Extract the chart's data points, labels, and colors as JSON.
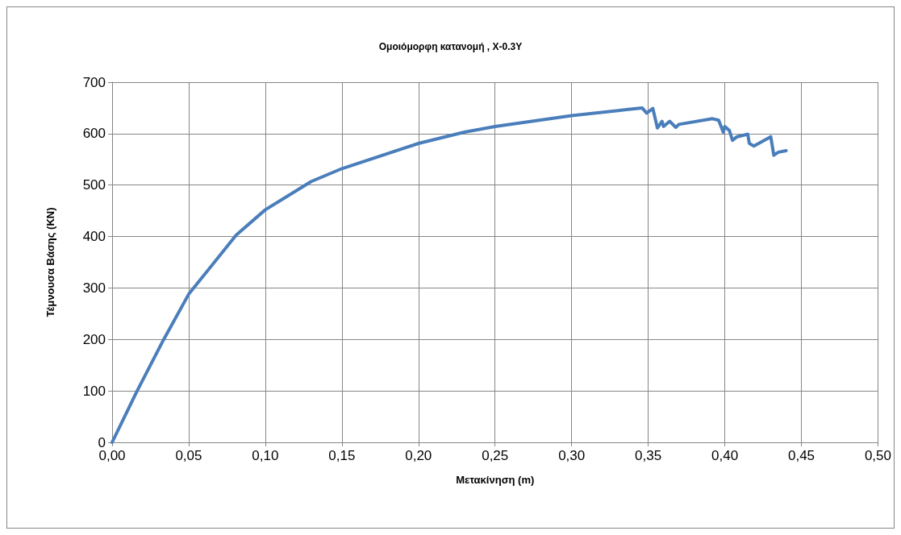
{
  "chart_data": {
    "type": "line",
    "title": "Ομοιόμορφη κατανομή , X-0.3Y",
    "xlabel": "Μετακίνηση (m)",
    "ylabel": "Τέμνουσα Βάσης (KN)",
    "x": [
      0,
      0.016,
      0.0335,
      0.05,
      0.081,
      0.1,
      0.13,
      0.15,
      0.2,
      0.23,
      0.25,
      0.3,
      0.337,
      0.346,
      0.349,
      0.353,
      0.356,
      0.359,
      0.36,
      0.364,
      0.368,
      0.37,
      0.392,
      0.396,
      0.399,
      0.4,
      0.403,
      0.405,
      0.408,
      0.415,
      0.416,
      0.419,
      0.43,
      0.432,
      0.435,
      0.44
    ],
    "series": [
      {
        "color": "#4a7ebb",
        "values": [
          0,
          98,
          199,
          288,
          403,
          452,
          507,
          532,
          581,
          603,
          614,
          635,
          647,
          650,
          640,
          649,
          611,
          624,
          614,
          624,
          612,
          618,
          629,
          626,
          603,
          614,
          606,
          587,
          594,
          599,
          581,
          576,
          594,
          558,
          564,
          567
        ]
      }
    ],
    "xlim": [
      0,
      0.5
    ],
    "xticks": [
      {
        "value": 0,
        "label": "0,00"
      },
      {
        "value": 0.05,
        "label": "0,05"
      },
      {
        "value": 0.1,
        "label": "0,10"
      },
      {
        "value": 0.15,
        "label": "0,15"
      },
      {
        "value": 0.2,
        "label": "0,20"
      },
      {
        "value": 0.25,
        "label": "0,25"
      },
      {
        "value": 0.3,
        "label": "0,30"
      },
      {
        "value": 0.35,
        "label": "0,35"
      },
      {
        "value": 0.4,
        "label": "0,40"
      },
      {
        "value": 0.45,
        "label": "0,45"
      },
      {
        "value": 0.5,
        "label": "0,50"
      }
    ],
    "ylim": [
      0,
      700
    ],
    "yticks": [
      0,
      100,
      200,
      300,
      400,
      500,
      600,
      700
    ],
    "grid": true,
    "marker": "none",
    "line_style": "solid"
  }
}
